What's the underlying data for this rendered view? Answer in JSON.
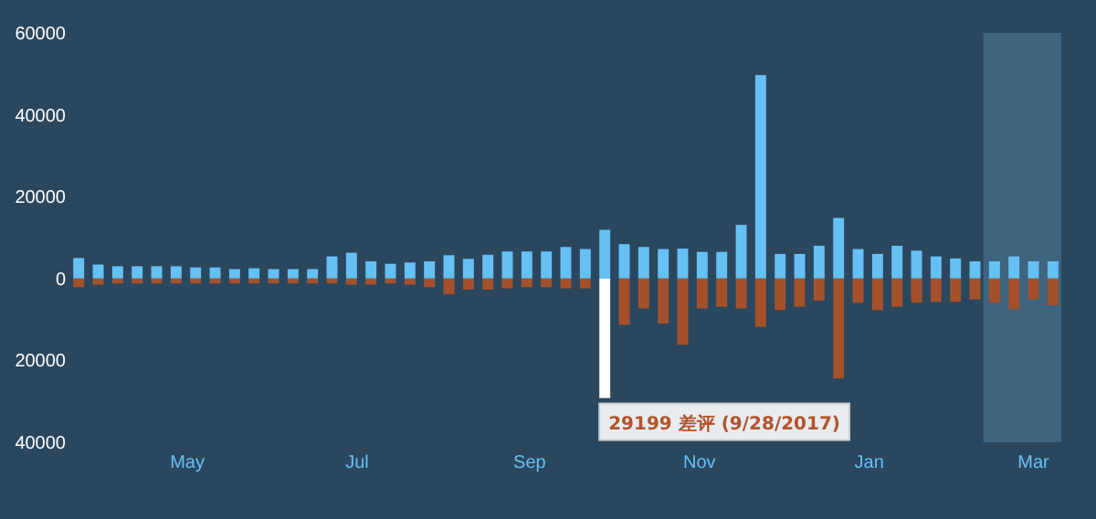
{
  "chart_data": {
    "type": "bar",
    "stacked": true,
    "x": [
      "2017-03-23",
      "2017-03-30",
      "2017-04-06",
      "2017-04-13",
      "2017-04-20",
      "2017-04-27",
      "2017-05-04",
      "2017-05-11",
      "2017-05-18",
      "2017-05-25",
      "2017-06-01",
      "2017-06-08",
      "2017-06-15",
      "2017-06-22",
      "2017-06-29",
      "2017-07-06",
      "2017-07-13",
      "2017-07-20",
      "2017-07-27",
      "2017-08-03",
      "2017-08-10",
      "2017-08-17",
      "2017-08-24",
      "2017-08-31",
      "2017-09-07",
      "2017-09-14",
      "2017-09-21",
      "2017-09-28",
      "2017-10-05",
      "2017-10-12",
      "2017-10-19",
      "2017-10-26",
      "2017-11-02",
      "2017-11-09",
      "2017-11-16",
      "2017-11-23",
      "2017-11-30",
      "2017-12-07",
      "2017-12-14",
      "2017-12-21",
      "2017-12-28",
      "2018-01-04",
      "2018-01-11",
      "2018-01-18",
      "2018-01-25",
      "2018-02-01",
      "2018-02-08",
      "2018-02-15",
      "2018-02-22",
      "2018-03-01",
      "2018-03-08"
    ],
    "series": [
      {
        "color": "#66c0f4",
        "values": [
          5000,
          3400,
          3000,
          3000,
          3000,
          3000,
          2700,
          2700,
          2300,
          2500,
          2300,
          2300,
          2300,
          5400,
          6300,
          4200,
          3600,
          3900,
          4200,
          5700,
          4800,
          5800,
          6600,
          6600,
          6600,
          7700,
          7200,
          11900,
          8400,
          7700,
          7200,
          7300,
          6500,
          6500,
          13100,
          49700,
          6000,
          6000,
          8000,
          14800,
          7200,
          6000,
          8000,
          6800,
          5400,
          4900,
          4200,
          4200,
          5400,
          4200,
          4200
        ]
      },
      {
        "colors": [
          "#a4512b",
          "#a4512b",
          "#a4512b",
          "#a4512b",
          "#a4512b",
          "#a4512b",
          "#a4512b",
          "#a4512b",
          "#a4512b",
          "#a4512b",
          "#a4512b",
          "#a4512b",
          "#a4512b",
          "#a4512b",
          "#a4512b",
          "#a4512b",
          "#a4512b",
          "#a4512b",
          "#a4512b",
          "#a4512b",
          "#a4512b",
          "#a4512b",
          "#a4512b",
          "#a4512b",
          "#a4512b",
          "#a4512b",
          "#a4512b",
          "#ffffff",
          "#a4512b",
          "#a4512b",
          "#a4512b",
          "#a4512b",
          "#a4512b",
          "#a4512b",
          "#a4512b",
          "#a4512b",
          "#a4512b",
          "#a4512b",
          "#a4512b",
          "#a4512b",
          "#a4512b",
          "#a4512b",
          "#a4512b",
          "#a4512b",
          "#a4512b",
          "#a4512b",
          "#a4512b",
          "#a4512b",
          "#a4512b",
          "#a4512b",
          "#a4512b"
        ],
        "values": [
          -2100,
          -1500,
          -1200,
          -1200,
          -1200,
          -1200,
          -1200,
          -1200,
          -1200,
          -1200,
          -1200,
          -1200,
          -1200,
          -1200,
          -1500,
          -1500,
          -1200,
          -1500,
          -2100,
          -3800,
          -2700,
          -2700,
          -2400,
          -2100,
          -2100,
          -2400,
          -2400,
          -29199,
          -11300,
          -7300,
          -11000,
          -16200,
          -7300,
          -6900,
          -7300,
          -11800,
          -7700,
          -6900,
          -5400,
          -24400,
          -5900,
          -7700,
          -6900,
          -5900,
          -5700,
          -5700,
          -5100,
          -5900,
          -7500,
          -5100,
          -6500
        ]
      }
    ],
    "xlim": [
      "2017-03-19",
      "2018-03-11"
    ],
    "xticks": [
      {
        "value": "2017-05-01",
        "label": "May"
      },
      {
        "value": "2017-07-01",
        "label": "Jul"
      },
      {
        "value": "2017-09-01",
        "label": "Sep"
      },
      {
        "value": "2017-11-01",
        "label": "Nov"
      },
      {
        "value": "2018-01-01",
        "label": "Jan"
      },
      {
        "value": "2018-03-01",
        "label": "Mar"
      }
    ],
    "ylim": [
      -40000,
      60000
    ],
    "yticks": [
      {
        "value": -40000,
        "label": "40000"
      },
      {
        "value": -20000,
        "label": "20000"
      },
      0,
      20000,
      40000,
      60000
    ],
    "bands": [
      {
        "axis": "x",
        "from": "2018-02-11",
        "to": "2018-03-11",
        "color": "#3f6480"
      }
    ],
    "annotations": [
      {
        "text": "29199 差评 (9/28/2017)",
        "x": "2017-09-28",
        "y": -29199
      }
    ]
  }
}
